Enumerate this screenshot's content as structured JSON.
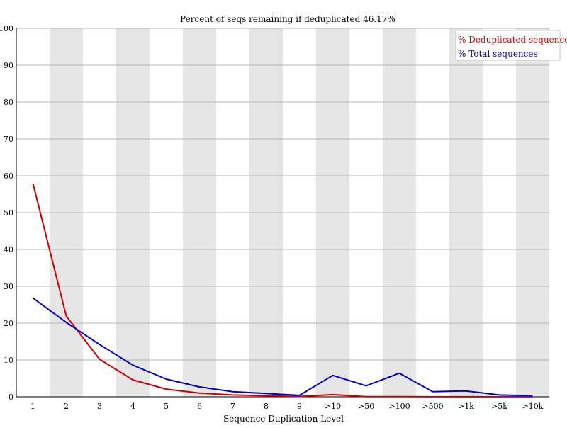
{
  "chart_data": {
    "type": "line",
    "title": "Percent of seqs remaining if deduplicated 46.17%",
    "xlabel": "Sequence Duplication Level",
    "ylabel": "",
    "ylim": [
      0,
      100
    ],
    "yticks": [
      0,
      10,
      20,
      30,
      40,
      50,
      60,
      70,
      80,
      90,
      100
    ],
    "categories": [
      "1",
      "2",
      "3",
      "4",
      "5",
      "6",
      "7",
      "8",
      "9",
      ">10",
      ">50",
      ">100",
      ">500",
      ">1k",
      ">5k",
      ">10k"
    ],
    "series": [
      {
        "name": "% Deduplicated sequences",
        "color": "#cc0000",
        "values": [
          57.9,
          21.9,
          10.2,
          4.6,
          2.1,
          1.0,
          0.5,
          0.3,
          0.1,
          0.6,
          0.05,
          0.05,
          0.02,
          0.02,
          0.01,
          0.01
        ]
      },
      {
        "name": "% Total sequences",
        "color": "#0000cc",
        "values": [
          26.8,
          20.2,
          14.2,
          8.6,
          4.8,
          2.7,
          1.4,
          0.9,
          0.4,
          5.8,
          3.0,
          6.4,
          1.4,
          1.6,
          0.5,
          0.3
        ]
      }
    ],
    "legend_position": "top-right",
    "stripes": "alternating gray columns",
    "grid": true
  }
}
